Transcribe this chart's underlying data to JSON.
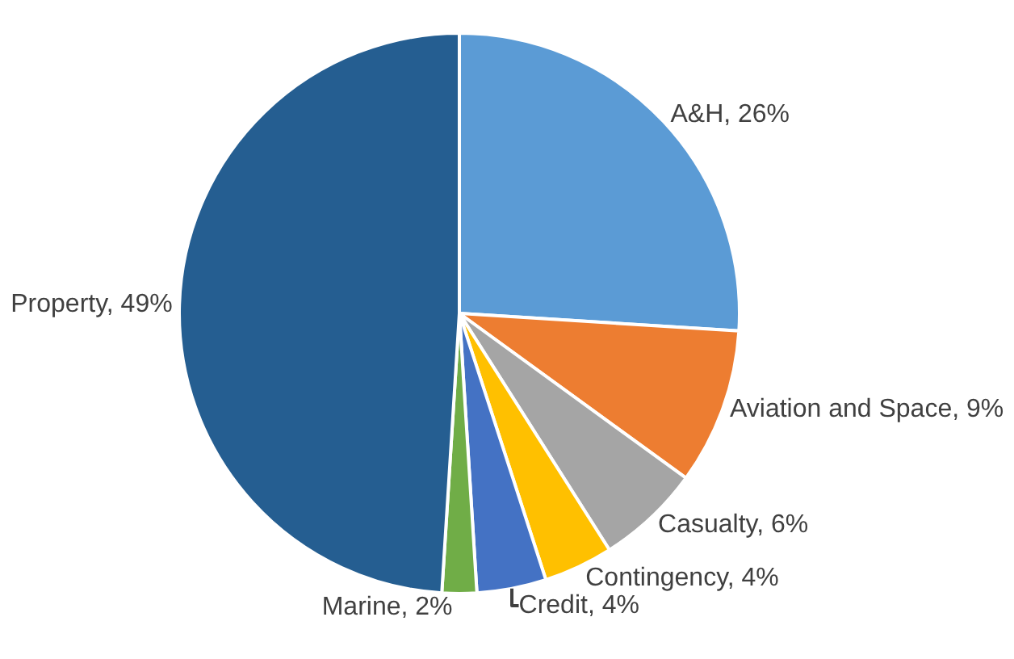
{
  "chart_data": {
    "type": "pie",
    "categories": [
      "A&H",
      "Aviation and Space",
      "Casualty",
      "Contingency",
      "Credit",
      "Marine",
      "Property"
    ],
    "values": [
      26,
      9,
      6,
      4,
      4,
      2,
      49
    ],
    "value_labels": [
      "26%",
      "9%",
      "6%",
      "4%",
      "4%",
      "2%",
      "49%"
    ],
    "colors": [
      "#5b9bd5",
      "#ed7d31",
      "#a5a5a5",
      "#ffc000",
      "#4472c4",
      "#70ad47",
      "#255e91"
    ],
    "legend": false
  }
}
